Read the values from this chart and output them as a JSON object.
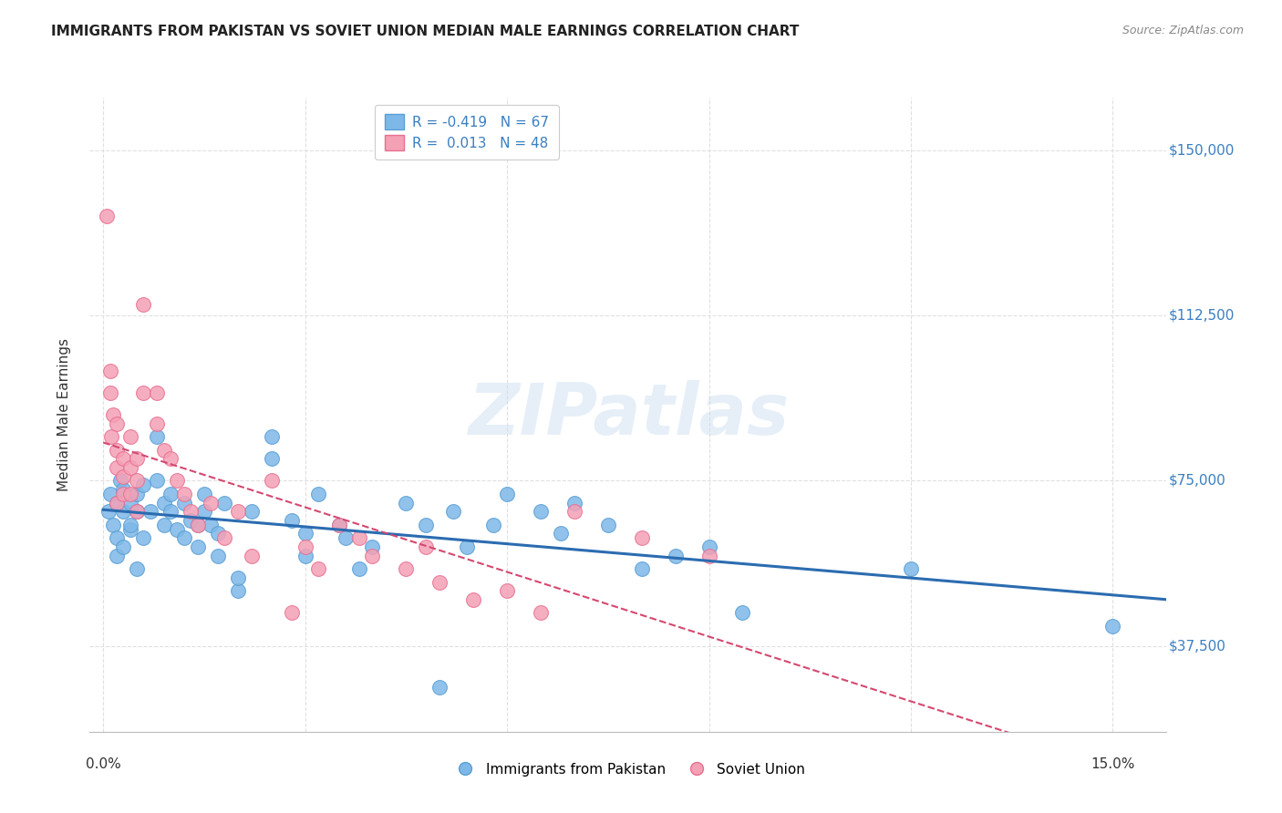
{
  "title": "IMMIGRANTS FROM PAKISTAN VS SOVIET UNION MEDIAN MALE EARNINGS CORRELATION CHART",
  "source": "Source: ZipAtlas.com",
  "ylabel": "Median Male Earnings",
  "yticks_labels": [
    "$37,500",
    "$75,000",
    "$112,500",
    "$150,000"
  ],
  "yticks_values": [
    37500,
    75000,
    112500,
    150000
  ],
  "ylim": [
    18000,
    162000
  ],
  "xlim": [
    -0.002,
    0.158
  ],
  "xticks": [
    0.0,
    0.03,
    0.06,
    0.09,
    0.12,
    0.15
  ],
  "watermark": "ZIPatlas",
  "legend_r1": "R = -0.419",
  "legend_n1": "N = 67",
  "legend_r2": "R =  0.013",
  "legend_n2": "N = 48",
  "pakistan_color": "#7eb8e8",
  "soviet_color": "#f4a0b5",
  "pakistan_edge": "#5a9fd4",
  "soviet_edge": "#e87090",
  "trend_pakistan_color": "#2b6cb0",
  "trend_soviet_color": "#d44870",
  "background_color": "#ffffff",
  "grid_color": "#e0e0e0",
  "pakistan_x": [
    0.0008,
    0.001,
    0.0015,
    0.002,
    0.002,
    0.002,
    0.0025,
    0.003,
    0.003,
    0.003,
    0.004,
    0.004,
    0.004,
    0.005,
    0.005,
    0.005,
    0.006,
    0.006,
    0.007,
    0.008,
    0.008,
    0.009,
    0.009,
    0.01,
    0.01,
    0.011,
    0.012,
    0.012,
    0.013,
    0.014,
    0.014,
    0.015,
    0.015,
    0.016,
    0.017,
    0.017,
    0.018,
    0.02,
    0.02,
    0.022,
    0.025,
    0.025,
    0.028,
    0.03,
    0.03,
    0.032,
    0.035,
    0.036,
    0.038,
    0.04,
    0.045,
    0.048,
    0.05,
    0.052,
    0.054,
    0.058,
    0.06,
    0.065,
    0.068,
    0.07,
    0.075,
    0.08,
    0.085,
    0.09,
    0.095,
    0.12,
    0.15
  ],
  "pakistan_y": [
    68000,
    72000,
    65000,
    70000,
    62000,
    58000,
    75000,
    73000,
    68000,
    60000,
    64000,
    70000,
    65000,
    72000,
    68000,
    55000,
    74000,
    62000,
    68000,
    85000,
    75000,
    70000,
    65000,
    72000,
    68000,
    64000,
    70000,
    62000,
    66000,
    65000,
    60000,
    68000,
    72000,
    65000,
    63000,
    58000,
    70000,
    50000,
    53000,
    68000,
    80000,
    85000,
    66000,
    63000,
    58000,
    72000,
    65000,
    62000,
    55000,
    60000,
    70000,
    65000,
    28000,
    68000,
    60000,
    65000,
    72000,
    68000,
    63000,
    70000,
    65000,
    55000,
    58000,
    60000,
    45000,
    55000,
    42000
  ],
  "soviet_x": [
    0.0005,
    0.001,
    0.001,
    0.0012,
    0.0015,
    0.002,
    0.002,
    0.002,
    0.002,
    0.003,
    0.003,
    0.003,
    0.004,
    0.004,
    0.004,
    0.005,
    0.005,
    0.005,
    0.006,
    0.006,
    0.008,
    0.008,
    0.009,
    0.01,
    0.011,
    0.012,
    0.013,
    0.014,
    0.016,
    0.018,
    0.02,
    0.022,
    0.025,
    0.028,
    0.03,
    0.032,
    0.035,
    0.038,
    0.04,
    0.045,
    0.048,
    0.05,
    0.055,
    0.06,
    0.065,
    0.07,
    0.08,
    0.09
  ],
  "soviet_y": [
    135000,
    95000,
    100000,
    85000,
    90000,
    88000,
    82000,
    78000,
    70000,
    80000,
    76000,
    72000,
    85000,
    78000,
    72000,
    80000,
    75000,
    68000,
    115000,
    95000,
    95000,
    88000,
    82000,
    80000,
    75000,
    72000,
    68000,
    65000,
    70000,
    62000,
    68000,
    58000,
    75000,
    45000,
    60000,
    55000,
    65000,
    62000,
    58000,
    55000,
    60000,
    52000,
    48000,
    50000,
    45000,
    68000,
    62000,
    58000
  ]
}
